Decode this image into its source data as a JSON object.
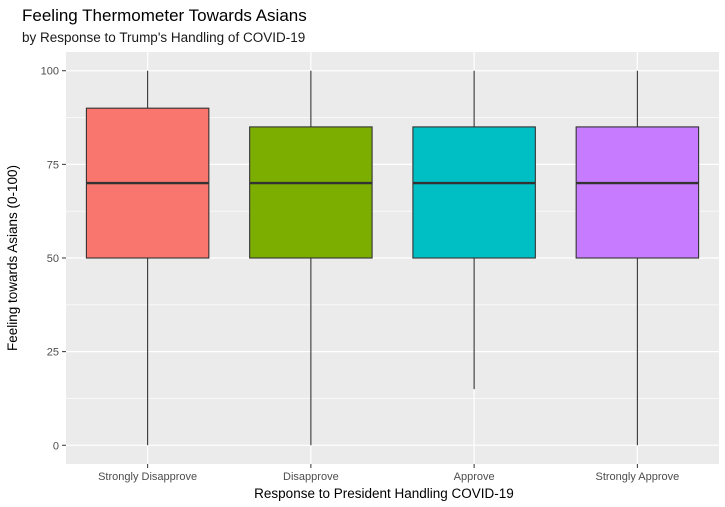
{
  "chart_data": {
    "type": "boxplot",
    "title": "Feeling Thermometer Towards Asians",
    "subtitle": "by Response to Trump's Handling of COVID-19",
    "xlabel": "Response to President Handling COVID-19",
    "ylabel": "Feeling towards Asians (0-100)",
    "ylim": [
      -5,
      105
    ],
    "yticks": [
      0,
      25,
      50,
      75,
      100
    ],
    "categories": [
      "Strongly Disapprove",
      "Disapprove",
      "Approve",
      "Strongly Approve"
    ],
    "series": [
      {
        "category": "Strongly Disapprove",
        "min": 0,
        "q1": 50,
        "median": 70,
        "q3": 90,
        "max": 100,
        "color": "#F8766D"
      },
      {
        "category": "Disapprove",
        "min": 0,
        "q1": 50,
        "median": 70,
        "q3": 85,
        "max": 100,
        "color": "#7CAE00"
      },
      {
        "category": "Approve",
        "min": 15,
        "q1": 50,
        "median": 70,
        "q3": 85,
        "max": 100,
        "color": "#00BFC4"
      },
      {
        "category": "Strongly Approve",
        "min": 0,
        "q1": 50,
        "median": 70,
        "q3": 85,
        "max": 100,
        "color": "#C77CFF"
      }
    ],
    "grid": true,
    "legend": "none",
    "panel_background": "#EBEBEB",
    "gridline_color": "#FFFFFF"
  }
}
